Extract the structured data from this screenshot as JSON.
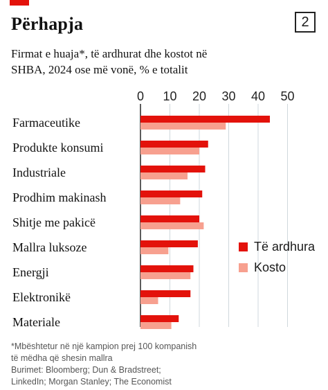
{
  "header": {
    "title": "Përhapja",
    "figure_number": "2",
    "subtitle_line1": "Firmat e huaja*, të ardhurat dhe kostot në",
    "subtitle_line2": "SHBA, 2024 ose më vonë, % e totalit"
  },
  "chart_data": {
    "type": "bar",
    "orientation": "horizontal",
    "categories": [
      "Farmaceutike",
      "Produkte konsumi",
      "Industriale",
      "Prodhim makinash",
      "Shitje me pakicë",
      "Mallra luksoze",
      "Energji",
      "Elektronikë",
      "Materiale"
    ],
    "series": [
      {
        "name": "Të ardhura",
        "color": "#e3120b",
        "values": [
          44,
          23,
          22,
          21,
          20,
          19.5,
          18,
          17,
          13
        ]
      },
      {
        "name": "Kosto",
        "color": "#f7a08f",
        "values": [
          29,
          20,
          16,
          13.5,
          21.5,
          9.5,
          17,
          6,
          10.5
        ]
      }
    ],
    "xlim": [
      0,
      50
    ],
    "xticks": [
      "0",
      "10",
      "20",
      "30",
      "40",
      "50"
    ],
    "grid": true,
    "axis_position": "top",
    "legend_position": "right"
  },
  "footnote": {
    "line1": "*Mbështetur në një kampion prej 100 kompanish",
    "line2": "të mëdha që shesin mallra",
    "line3": "Burimet: Bloomberg; Dun & Bradstreet;",
    "line4": "LinkedIn; Morgan Stanley; The Economist"
  }
}
